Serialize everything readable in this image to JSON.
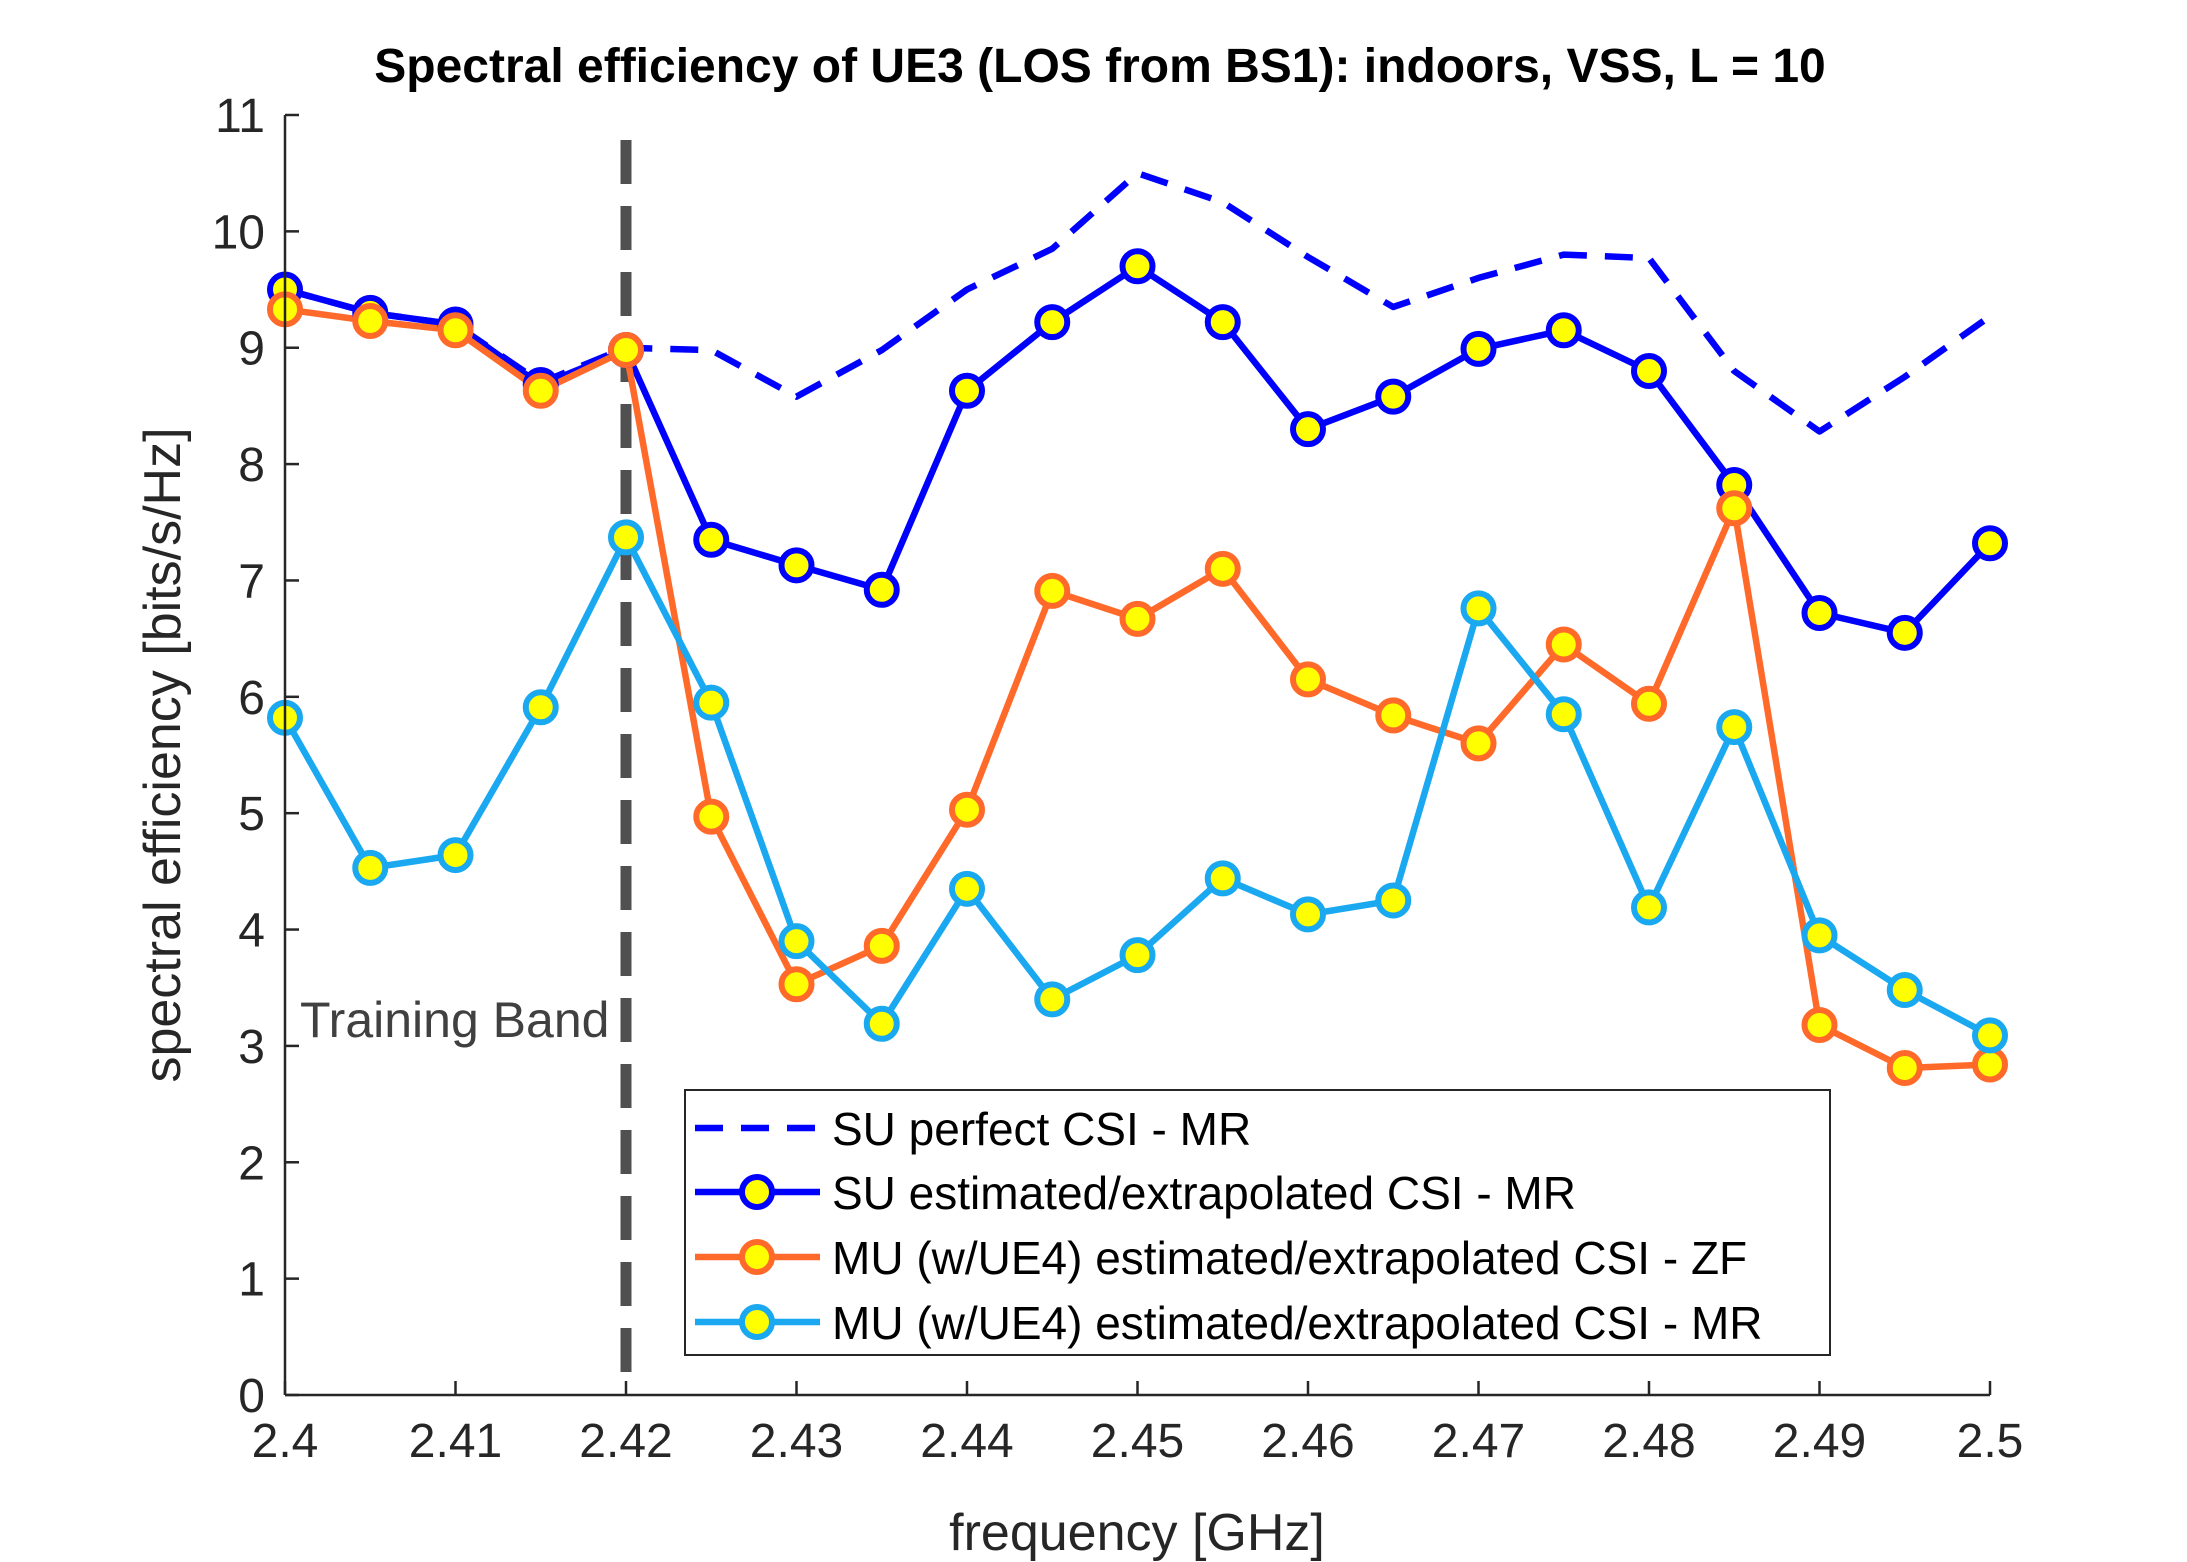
{
  "chart_data": {
    "type": "line",
    "title": "Spectral efficiency of UE3 (LOS from BS1): indoors, VSS, L = 10",
    "xlabel": "frequency [GHz]",
    "ylabel": "spectral efficiency [bits/s/Hz]",
    "xlim": [
      2.4,
      2.5
    ],
    "ylim": [
      0,
      11
    ],
    "xticks": [
      "2.4",
      "2.41",
      "2.42",
      "2.43",
      "2.44",
      "2.45",
      "2.46",
      "2.47",
      "2.48",
      "2.49",
      "2.5"
    ],
    "yticks": [
      "0",
      "1",
      "2",
      "3",
      "4",
      "5",
      "6",
      "7",
      "8",
      "9",
      "10",
      "11"
    ],
    "grid": false,
    "legend_position": "bottom-center",
    "annotation": {
      "text": "Training Band",
      "divider_x": 2.42
    },
    "x": [
      2.4,
      2.405,
      2.41,
      2.415,
      2.42,
      2.425,
      2.43,
      2.435,
      2.44,
      2.445,
      2.45,
      2.455,
      2.46,
      2.465,
      2.47,
      2.475,
      2.48,
      2.485,
      2.49,
      2.495,
      2.5
    ],
    "series": [
      {
        "name": "SU perfect CSI - MR",
        "color": "#0000ff",
        "style": "dashed",
        "markers": false,
        "values": [
          9.5,
          9.3,
          9.2,
          8.7,
          9.0,
          8.98,
          8.58,
          8.98,
          9.5,
          9.85,
          10.5,
          10.25,
          9.78,
          9.35,
          9.6,
          9.8,
          9.77,
          8.8,
          8.28,
          8.75,
          9.27
        ]
      },
      {
        "name": "SU estimated/extrapolated CSI - MR",
        "color": "#0000ff",
        "style": "solid",
        "markers": true,
        "values": [
          9.5,
          9.3,
          9.2,
          8.68,
          8.98,
          7.35,
          7.13,
          6.92,
          8.63,
          9.22,
          9.7,
          9.22,
          8.3,
          8.58,
          8.99,
          9.15,
          8.8,
          7.82,
          6.72,
          6.55,
          7.32
        ]
      },
      {
        "name": "MU (w/UE4) estimated/extrapolated CSI - ZF",
        "color": "#ff6a2a",
        "style": "solid",
        "markers": true,
        "values": [
          9.33,
          9.23,
          9.15,
          8.63,
          8.98,
          4.97,
          3.53,
          3.86,
          5.03,
          6.91,
          6.67,
          7.1,
          6.15,
          5.84,
          5.6,
          6.45,
          5.94,
          7.62,
          3.18,
          2.81,
          2.84
        ]
      },
      {
        "name": "MU (w/UE4) estimated/extrapolated CSI - MR",
        "color": "#1aa8f0",
        "style": "solid",
        "markers": true,
        "values": [
          5.82,
          4.53,
          4.64,
          5.91,
          7.37,
          5.95,
          3.9,
          3.19,
          4.35,
          3.4,
          3.78,
          4.44,
          4.13,
          4.25,
          6.76,
          5.85,
          4.19,
          5.74,
          3.95,
          3.48,
          3.09
        ]
      }
    ],
    "marker_fill": "#ffff00",
    "axis_color": "#262626",
    "divider_color": "#505050"
  }
}
